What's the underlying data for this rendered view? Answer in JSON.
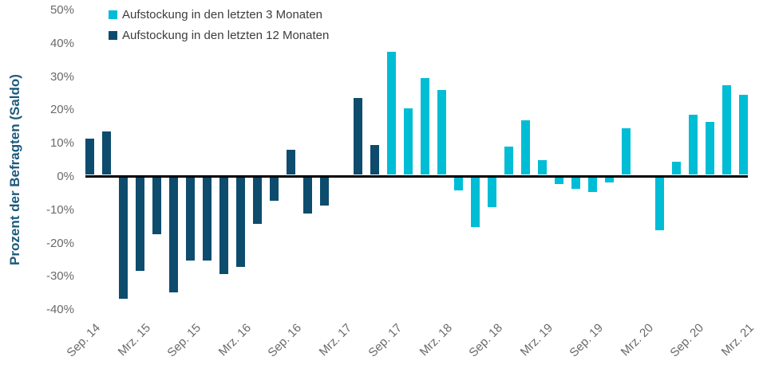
{
  "chart_data": {
    "type": "bar",
    "title": "",
    "xlabel": "",
    "ylabel": "Prozent der Befragten (Saldo)",
    "ylim": [
      -40,
      50
    ],
    "grid": false,
    "legend_position": "top-left",
    "y_tick_values": [
      50,
      40,
      30,
      20,
      10,
      0,
      -10,
      -20,
      -30,
      -40
    ],
    "y_tick_labels": [
      "50%",
      "40%",
      "30%",
      "20%",
      "10%",
      "0%",
      "-10%",
      "-20%",
      "-30%",
      "-40%"
    ],
    "x_slot_count": 40,
    "x_tick_slot_step": 3,
    "x_tick_labels": [
      "Sep. 14",
      "Mrz. 15",
      "Sep. 15",
      "Mrz. 16",
      "Sep. 16",
      "Mrz. 17",
      "Sep. 17",
      "Mrz. 18",
      "Sep. 18",
      "Mrz. 19",
      "Sep. 19",
      "Mrz. 20",
      "Sep. 20",
      "Mrz. 21"
    ],
    "series": [
      {
        "name": "Aufstockung in den letzten 3 Monaten",
        "color": "#00bdd6",
        "values": [
          null,
          null,
          null,
          null,
          null,
          null,
          null,
          null,
          null,
          null,
          null,
          null,
          null,
          null,
          null,
          null,
          null,
          null,
          37,
          20,
          29,
          25.5,
          -4,
          -15,
          -9,
          8.5,
          16.5,
          4.5,
          -2,
          -3.5,
          -4.5,
          -1.5,
          14,
          0,
          -16,
          4,
          18,
          16,
          27,
          24
        ]
      },
      {
        "name": "Aufstockung in den letzten 12 Monaten",
        "color": "#0e4c6e",
        "values": [
          11,
          13,
          -36.5,
          -28,
          -17,
          -34.5,
          -25,
          -25,
          -29,
          -27,
          -14,
          -7,
          7.5,
          -11,
          -8.5,
          0,
          23,
          9,
          null,
          null,
          null,
          null,
          null,
          null,
          null,
          null,
          null,
          null,
          null,
          null,
          null,
          null,
          null,
          null,
          null,
          null,
          null,
          null,
          null,
          null
        ]
      }
    ]
  },
  "colors": {
    "background": "#ffffff",
    "axis_line": "#000000",
    "tick_label": "#6a6a6a",
    "axis_title": "#1d5a7c",
    "legend_text": "#3d3d3d"
  }
}
